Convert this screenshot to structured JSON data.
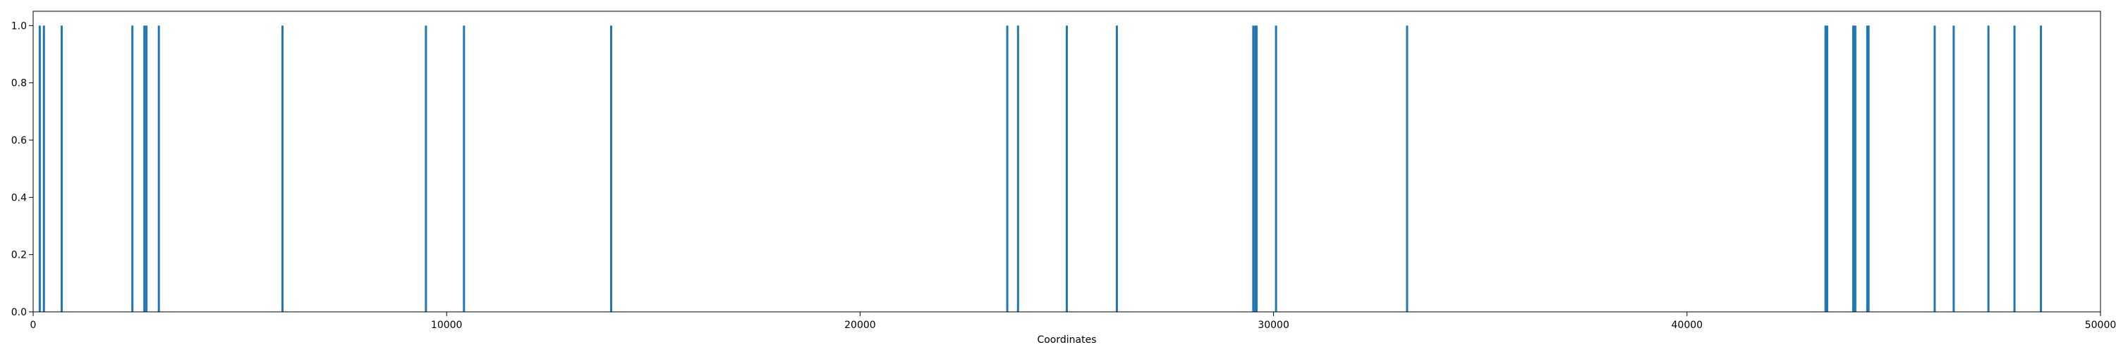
{
  "chart_data": {
    "type": "bar",
    "title": "",
    "xlabel": "Coordinates",
    "ylabel": "",
    "xlim": [
      0,
      50000
    ],
    "ylim": [
      0,
      1.05
    ],
    "x_ticks": [
      0,
      10000,
      20000,
      30000,
      40000,
      50000
    ],
    "x_tick_labels": [
      "0",
      "10000",
      "20000",
      "30000",
      "40000",
      "50000"
    ],
    "y_ticks": [
      0.0,
      0.2,
      0.4,
      0.6,
      0.8,
      1.0
    ],
    "y_tick_labels": [
      "0.0",
      "0.2",
      "0.4",
      "0.6",
      "0.8",
      "1.0"
    ],
    "grid": false,
    "legend": "none",
    "bar_color": "#1f77b4",
    "x": [
      160,
      260,
      690,
      2400,
      2690,
      2740,
      3040,
      6030,
      9500,
      10420,
      13980,
      23560,
      23820,
      25000,
      26210,
      29510,
      29560,
      29590,
      30060,
      33230,
      43350,
      43390,
      44020,
      44070,
      44360,
      44390,
      45990,
      46450,
      47290,
      47920,
      48560
    ],
    "values": [
      1,
      1,
      1,
      1,
      1,
      1,
      1,
      1,
      1,
      1,
      1,
      1,
      1,
      1,
      1,
      1,
      1,
      1,
      1,
      1,
      1,
      1,
      1,
      1,
      1,
      1,
      1,
      1,
      1,
      1,
      1
    ]
  }
}
